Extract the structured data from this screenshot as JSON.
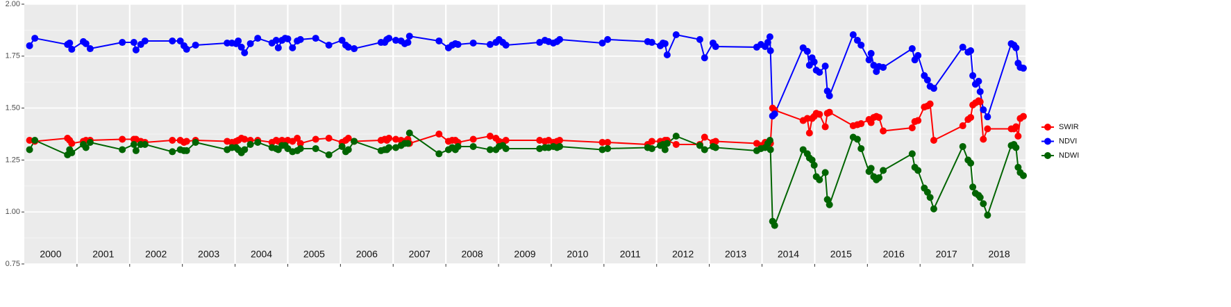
{
  "chart_data": {
    "type": "line",
    "x": [
      2000.1,
      2000.2,
      2000.82,
      2000.86,
      2000.9,
      2001.12,
      2001.17,
      2001.25,
      2001.86,
      2002.08,
      2002.12,
      2002.21,
      2002.29,
      2002.81,
      2002.96,
      2003.03,
      2003.08,
      2003.25,
      2003.85,
      2003.94,
      2004.02,
      2004.06,
      2004.12,
      2004.18,
      2004.29,
      2004.43,
      2004.7,
      2004.78,
      2004.82,
      2004.89,
      2004.95,
      2005.0,
      2005.09,
      2005.18,
      2005.24,
      2005.53,
      2005.78,
      2006.03,
      2006.1,
      2006.15,
      2006.26,
      2006.77,
      2006.84,
      2006.88,
      2006.92,
      2007.05,
      2007.15,
      2007.22,
      2007.28,
      2007.31,
      2007.87,
      2008.05,
      2008.12,
      2008.18,
      2008.23,
      2008.52,
      2008.84,
      2008.95,
      2009.01,
      2009.08,
      2009.14,
      2009.78,
      2009.88,
      2009.95,
      2010.04,
      2010.11,
      2010.16,
      2010.97,
      2011.07,
      2011.83,
      2011.91,
      2012.07,
      2012.12,
      2012.16,
      2012.2,
      2012.37,
      2012.82,
      2012.91,
      2013.07,
      2013.12,
      2013.9,
      2013.98,
      2014.06,
      2014.11,
      2014.15,
      2014.16,
      2014.2,
      2014.24,
      2014.78,
      2014.86,
      2014.9,
      2014.95,
      2014.99,
      2015.03,
      2015.09,
      2015.2,
      2015.24,
      2015.28,
      2015.73,
      2015.81,
      2015.88,
      2016.03,
      2016.07,
      2016.12,
      2016.17,
      2016.22,
      2016.3,
      2016.85,
      2016.9,
      2016.96,
      2017.08,
      2017.14,
      2017.19,
      2017.26,
      2017.81,
      2017.91,
      2017.96,
      2018.0,
      2018.05,
      2018.11,
      2018.14,
      2018.2,
      2018.28,
      2018.73,
      2018.78,
      2018.82,
      2018.86,
      2018.9,
      2018.96
    ],
    "series": [
      {
        "name": "SWIR",
        "color": "#ff0000",
        "values": [
          1.345,
          1.34,
          1.355,
          1.345,
          1.33,
          1.34,
          1.345,
          1.345,
          1.35,
          1.35,
          1.35,
          1.34,
          1.335,
          1.345,
          1.345,
          1.335,
          1.34,
          1.345,
          1.34,
          1.335,
          1.34,
          1.345,
          1.355,
          1.35,
          1.345,
          1.345,
          1.335,
          1.345,
          1.34,
          1.345,
          1.34,
          1.345,
          1.34,
          1.355,
          1.33,
          1.35,
          1.355,
          1.335,
          1.345,
          1.355,
          1.34,
          1.345,
          1.35,
          1.345,
          1.355,
          1.35,
          1.345,
          1.34,
          1.35,
          1.33,
          1.375,
          1.34,
          1.345,
          1.345,
          1.335,
          1.35,
          1.365,
          1.355,
          1.34,
          1.335,
          1.345,
          1.345,
          1.34,
          1.345,
          1.335,
          1.34,
          1.345,
          1.335,
          1.335,
          1.325,
          1.34,
          1.34,
          1.335,
          1.345,
          1.345,
          1.325,
          1.325,
          1.36,
          1.335,
          1.34,
          1.33,
          1.32,
          1.335,
          1.33,
          1.34,
          1.33,
          1.5,
          1.49,
          1.44,
          1.45,
          1.38,
          1.45,
          1.46,
          1.475,
          1.47,
          1.41,
          1.475,
          1.48,
          1.415,
          1.42,
          1.425,
          1.445,
          1.43,
          1.455,
          1.46,
          1.455,
          1.39,
          1.405,
          1.435,
          1.44,
          1.505,
          1.51,
          1.52,
          1.345,
          1.415,
          1.445,
          1.455,
          1.515,
          1.525,
          1.535,
          1.53,
          1.35,
          1.4,
          1.4,
          1.4,
          1.41,
          1.365,
          1.45,
          1.46
        ]
      },
      {
        "name": "NDVI",
        "color": "#0000ff",
        "values": [
          1.8,
          1.836,
          1.806,
          1.813,
          1.783,
          1.82,
          1.81,
          1.786,
          1.816,
          1.816,
          1.78,
          1.806,
          1.823,
          1.823,
          1.823,
          1.8,
          1.783,
          1.803,
          1.813,
          1.813,
          1.81,
          1.823,
          1.793,
          1.766,
          1.81,
          1.836,
          1.813,
          1.826,
          1.79,
          1.826,
          1.836,
          1.833,
          1.79,
          1.823,
          1.83,
          1.836,
          1.803,
          1.826,
          1.803,
          1.793,
          1.786,
          1.816,
          1.816,
          1.83,
          1.836,
          1.826,
          1.823,
          1.81,
          1.816,
          1.846,
          1.823,
          1.79,
          1.803,
          1.81,
          1.806,
          1.813,
          1.806,
          1.816,
          1.83,
          1.816,
          1.803,
          1.816,
          1.826,
          1.82,
          1.813,
          1.82,
          1.83,
          1.813,
          1.83,
          1.82,
          1.816,
          1.8,
          1.813,
          1.81,
          1.756,
          1.853,
          1.83,
          1.742,
          1.813,
          1.796,
          1.793,
          1.806,
          1.796,
          1.816,
          1.843,
          1.776,
          1.462,
          1.472,
          1.79,
          1.773,
          1.706,
          1.742,
          1.722,
          1.682,
          1.672,
          1.702,
          1.582,
          1.559,
          1.853,
          1.826,
          1.803,
          1.732,
          1.763,
          1.706,
          1.676,
          1.7,
          1.696,
          1.786,
          1.732,
          1.753,
          1.656,
          1.635,
          1.605,
          1.595,
          1.793,
          1.769,
          1.776,
          1.656,
          1.615,
          1.629,
          1.579,
          1.492,
          1.458,
          1.81,
          1.803,
          1.79,
          1.716,
          1.696,
          1.692
        ]
      },
      {
        "name": "NDWI",
        "color": "#006400",
        "values": [
          1.3,
          1.345,
          1.275,
          1.3,
          1.285,
          1.325,
          1.31,
          1.335,
          1.3,
          1.325,
          1.295,
          1.325,
          1.325,
          1.29,
          1.3,
          1.295,
          1.295,
          1.335,
          1.3,
          1.31,
          1.31,
          1.3,
          1.285,
          1.3,
          1.325,
          1.335,
          1.31,
          1.305,
          1.3,
          1.32,
          1.32,
          1.305,
          1.29,
          1.295,
          1.305,
          1.305,
          1.275,
          1.315,
          1.29,
          1.3,
          1.34,
          1.295,
          1.3,
          1.3,
          1.31,
          1.31,
          1.32,
          1.33,
          1.33,
          1.38,
          1.28,
          1.3,
          1.31,
          1.3,
          1.315,
          1.315,
          1.3,
          1.3,
          1.315,
          1.32,
          1.305,
          1.305,
          1.31,
          1.31,
          1.315,
          1.31,
          1.315,
          1.3,
          1.305,
          1.31,
          1.305,
          1.32,
          1.325,
          1.3,
          1.33,
          1.365,
          1.32,
          1.3,
          1.315,
          1.31,
          1.295,
          1.305,
          1.31,
          1.33,
          1.345,
          1.3,
          0.955,
          0.935,
          1.3,
          1.28,
          1.26,
          1.25,
          1.225,
          1.17,
          1.155,
          1.19,
          1.06,
          1.035,
          1.36,
          1.35,
          1.305,
          1.195,
          1.21,
          1.17,
          1.155,
          1.165,
          1.2,
          1.28,
          1.215,
          1.2,
          1.115,
          1.095,
          1.07,
          1.015,
          1.315,
          1.25,
          1.235,
          1.12,
          1.09,
          1.08,
          1.07,
          1.04,
          0.985,
          1.32,
          1.325,
          1.31,
          1.215,
          1.19,
          1.175
        ]
      }
    ],
    "xlim": [
      2000,
      2019
    ],
    "ylim": [
      0.75,
      2.0
    ],
    "yticks": [
      0.75,
      {
        "value": 1.0,
        "label": "1.00"
      },
      1.25,
      {
        "value": 1.5,
        "label": "1.50"
      },
      1.75,
      {
        "value": 2.0,
        "label": "2.00"
      }
    ],
    "xgrid": [
      2001,
      2002,
      2003,
      2004,
      2005,
      2006,
      2007,
      2008,
      2009,
      2010,
      2011,
      2012,
      2013,
      2014,
      2015,
      2016,
      2017,
      2018
    ],
    "year_labels": [
      {
        "value": 2000.5,
        "label": "2000"
      },
      {
        "value": 2001.5,
        "label": "2001"
      },
      {
        "value": 2002.5,
        "label": "2002"
      },
      {
        "value": 2003.5,
        "label": "2003"
      },
      {
        "value": 2004.5,
        "label": "2004"
      },
      {
        "value": 2005.5,
        "label": "2005"
      },
      {
        "value": 2006.5,
        "label": "2006"
      },
      {
        "value": 2007.5,
        "label": "2007"
      },
      {
        "value": 2008.5,
        "label": "2008"
      },
      {
        "value": 2009.5,
        "label": "2009"
      },
      {
        "value": 2010.5,
        "label": "2010"
      },
      {
        "value": 2011.5,
        "label": "2011"
      },
      {
        "value": 2012.5,
        "label": "2012"
      },
      {
        "value": 2013.5,
        "label": "2013"
      },
      {
        "value": 2014.5,
        "label": "2014"
      },
      {
        "value": 2015.5,
        "label": "2015"
      },
      {
        "value": 2016.5,
        "label": "2016"
      },
      {
        "value": 2017.5,
        "label": "2017"
      },
      {
        "value": 2018.5,
        "label": "2018"
      }
    ],
    "legend": "right"
  }
}
